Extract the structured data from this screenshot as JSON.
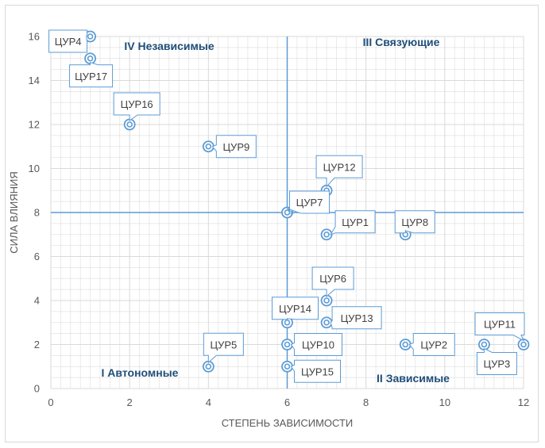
{
  "chart_data": {
    "type": "scatter",
    "title": "",
    "xlabel": "СТЕПЕНЬ ЗАВИСИМОСТИ",
    "ylabel": "СИЛА ВЛИЯНИЯ",
    "xlim": [
      0,
      12
    ],
    "ylim": [
      0,
      16
    ],
    "xticks": [
      0,
      2,
      4,
      6,
      8,
      10,
      12
    ],
    "yticks": [
      0,
      2,
      4,
      6,
      8,
      10,
      12,
      14,
      16
    ],
    "grid": true,
    "divider_x": 6,
    "divider_y": 8,
    "quadrants": [
      {
        "label": "IV Независимые",
        "position": "top-left"
      },
      {
        "label": "III Связующие",
        "position": "top-right"
      },
      {
        "label": "I Автономные",
        "position": "bottom-left"
      },
      {
        "label": "II Зависимые",
        "position": "bottom-right"
      }
    ],
    "points": [
      {
        "label": "ЦУР4",
        "x": 1,
        "y": 16
      },
      {
        "label": "ЦУР17",
        "x": 1,
        "y": 15
      },
      {
        "label": "ЦУР16",
        "x": 2,
        "y": 12
      },
      {
        "label": "ЦУР9",
        "x": 4,
        "y": 11
      },
      {
        "label": "ЦУР12",
        "x": 7,
        "y": 9
      },
      {
        "label": "ЦУР7",
        "x": 6,
        "y": 8
      },
      {
        "label": "ЦУР1",
        "x": 7,
        "y": 7
      },
      {
        "label": "ЦУР8",
        "x": 9,
        "y": 7
      },
      {
        "label": "ЦУР6",
        "x": 7,
        "y": 4
      },
      {
        "label": "ЦУР14",
        "x": 6,
        "y": 3
      },
      {
        "label": "ЦУР13",
        "x": 7,
        "y": 3
      },
      {
        "label": "ЦУР11",
        "x": 12,
        "y": 2
      },
      {
        "label": "ЦУР5",
        "x": 4,
        "y": 1
      },
      {
        "label": "ЦУР10",
        "x": 6,
        "y": 2
      },
      {
        "label": "ЦУР2",
        "x": 9,
        "y": 2
      },
      {
        "label": "ЦУР3",
        "x": 11,
        "y": 2
      },
      {
        "label": "ЦУР15",
        "x": 6,
        "y": 1
      }
    ]
  },
  "colors": {
    "accent": "#5b9bd5",
    "quadrant_text": "#1f4e79",
    "grid": "#d9d9d9",
    "tick": "#595959"
  }
}
